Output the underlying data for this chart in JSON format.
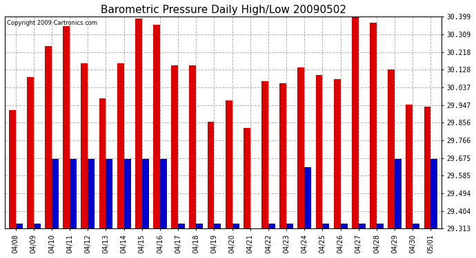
{
  "title": "Barometric Pressure Daily High/Low 20090502",
  "copyright": "Copyright 2009 Cartronics.com",
  "dates": [
    "04/08",
    "04/09",
    "04/10",
    "04/11",
    "04/12",
    "04/13",
    "04/14",
    "04/15",
    "04/16",
    "04/17",
    "04/18",
    "04/19",
    "04/20",
    "04/21",
    "04/22",
    "04/23",
    "04/24",
    "04/25",
    "04/26",
    "04/27",
    "04/28",
    "04/29",
    "04/30",
    "05/01"
  ],
  "highs": [
    29.92,
    30.09,
    30.25,
    30.35,
    30.16,
    29.98,
    30.16,
    30.39,
    30.36,
    30.15,
    30.15,
    29.86,
    29.97,
    29.83,
    30.07,
    30.06,
    30.14,
    30.1,
    30.08,
    30.4,
    30.37,
    30.13,
    29.95,
    29.94
  ],
  "lows": [
    29.34,
    29.34,
    29.67,
    29.67,
    29.67,
    29.67,
    29.67,
    29.67,
    29.67,
    29.34,
    29.34,
    29.34,
    29.34,
    29.315,
    29.34,
    29.34,
    29.63,
    29.34,
    29.34,
    29.34,
    29.34,
    29.67,
    29.34,
    29.67
  ],
  "ymin": 29.313,
  "ymax": 30.399,
  "yticks": [
    29.313,
    29.404,
    29.494,
    29.585,
    29.675,
    29.766,
    29.856,
    29.947,
    30.037,
    30.128,
    30.218,
    30.309,
    30.399
  ],
  "bar_width": 0.38,
  "high_color": "#dd0000",
  "low_color": "#0000cc",
  "bg_color": "#ffffff",
  "plot_bg_color": "#ffffff",
  "grid_color": "#aaaaaa",
  "title_fontsize": 11,
  "tick_fontsize": 7,
  "copyright_fontsize": 6
}
